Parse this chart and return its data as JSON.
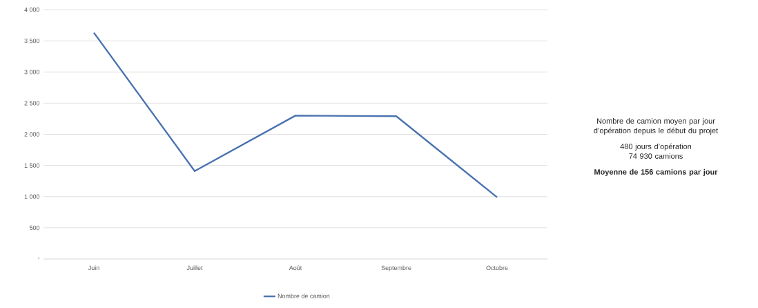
{
  "chart_data": {
    "type": "line",
    "categories": [
      "Juin",
      "Juillet",
      "Août",
      "Septembre",
      "Octobre"
    ],
    "series": [
      {
        "name": "Nombre de camion",
        "color": "#4a72b0",
        "values": [
          3630,
          1410,
          2300,
          2290,
          990
        ]
      }
    ],
    "ylim": [
      0,
      4000
    ],
    "yticks": [
      {
        "value": 0,
        "label": "-"
      },
      500,
      {
        "value": 1000,
        "label": "1 000"
      },
      {
        "value": 1500,
        "label": "1 500"
      },
      {
        "value": 2000,
        "label": "2 000"
      },
      {
        "value": 2500,
        "label": "2 500"
      },
      {
        "value": 3000,
        "label": "3 000"
      },
      {
        "value": 3500,
        "label": "3 500"
      },
      {
        "value": 4000,
        "label": "4 000"
      }
    ],
    "grid": "y",
    "legend": "bottom",
    "annotations": [
      "Nombre  de camion moyen par jour d’opération depuis le début du projet",
      "480 jours d’opération",
      "74 930 camions",
      "Moyenne de 156 camions par jour"
    ]
  }
}
